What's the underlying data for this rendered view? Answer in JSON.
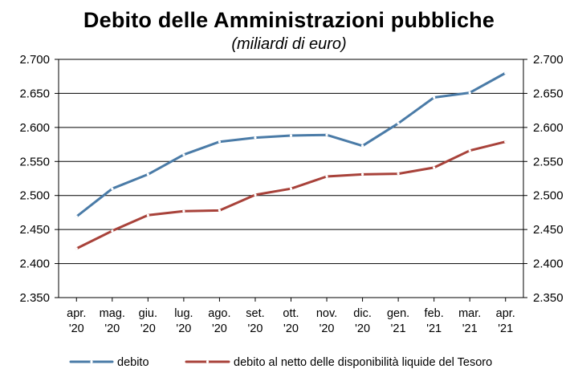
{
  "chart_data": {
    "type": "line",
    "title": "Debito delle Amministrazioni pubbliche",
    "subtitle": "(miliardi di euro)",
    "categories": [
      [
        "apr.",
        "'20"
      ],
      [
        "mag.",
        "'20"
      ],
      [
        "giu.",
        "'20"
      ],
      [
        "lug.",
        "'20"
      ],
      [
        "ago.",
        "'20"
      ],
      [
        "set.",
        "'20"
      ],
      [
        "ott.",
        "'20"
      ],
      [
        "nov.",
        "'20"
      ],
      [
        "dic.",
        "'20"
      ],
      [
        "gen.",
        "'21"
      ],
      [
        "feb.",
        "'21"
      ],
      [
        "mar.",
        "'21"
      ],
      [
        "apr.",
        "'21"
      ]
    ],
    "ylim": [
      2350,
      2700
    ],
    "yticks": [
      2350,
      2400,
      2450,
      2500,
      2550,
      2600,
      2650,
      2700
    ],
    "ytick_labels": [
      "2.350",
      "2.400",
      "2.450",
      "2.500",
      "2.550",
      "2.600",
      "2.650",
      "2.700"
    ],
    "grid": true,
    "legend_position": "bottom",
    "series": [
      {
        "name": "debito",
        "color": "#4a7ba7",
        "values": [
          2469,
          2510,
          2531,
          2560,
          2579,
          2585,
          2588,
          2589,
          2573,
          2606,
          2644,
          2651,
          2680
        ]
      },
      {
        "name": "debito al netto delle disponibilità liquide del Tesoro",
        "color": "#a8423a",
        "values": [
          2422,
          2448,
          2471,
          2477,
          2478,
          2501,
          2510,
          2528,
          2531,
          2532,
          2541,
          2566,
          2579
        ]
      }
    ]
  }
}
